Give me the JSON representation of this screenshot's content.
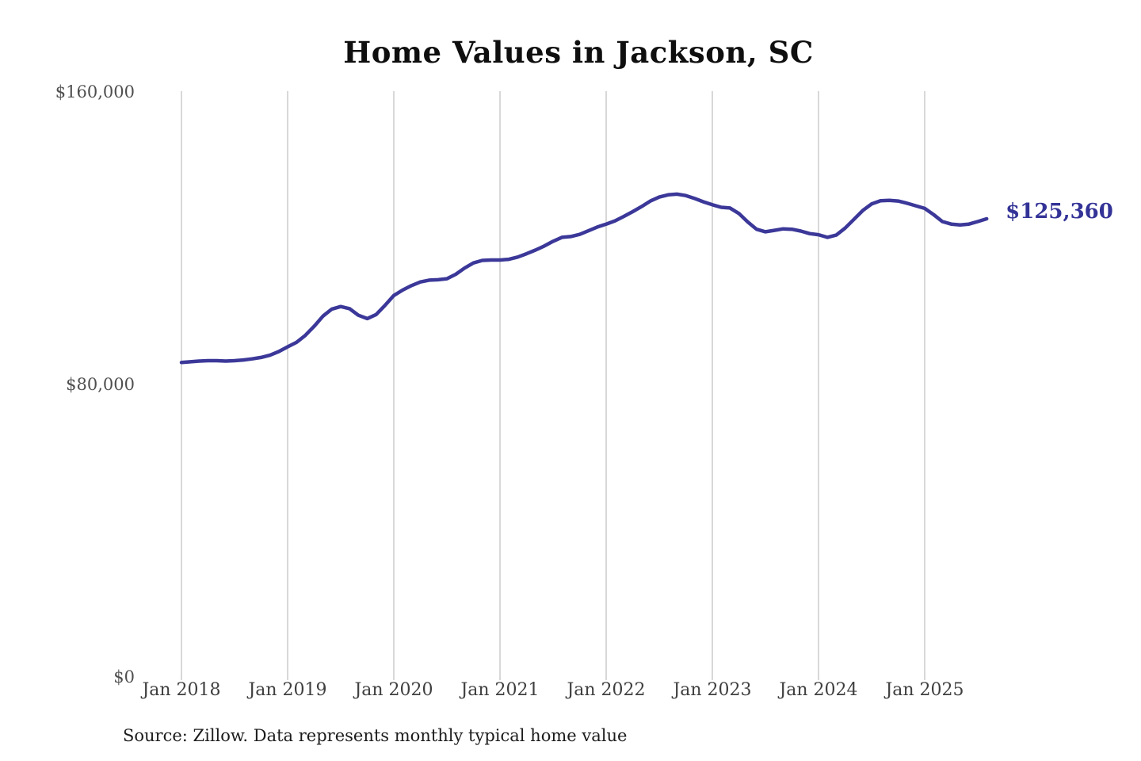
{
  "title": "Home Values in Jackson, SC",
  "source_note": "Source: Zillow. Data represents monthly typical home value",
  "colors": {
    "line": "#3b3899",
    "end_label": "#333397",
    "grid": "#cccccc",
    "y_tick_text": "#4f4f4f",
    "x_tick_text": "#3f3f3f",
    "title_text": "#0f0f0f",
    "source_text": "#1c1c1c",
    "background": "#ffffff"
  },
  "chart_data": {
    "type": "line",
    "title": "Home Values in Jackson, SC",
    "xlabel": "",
    "ylabel": "",
    "ylim": [
      0,
      160000
    ],
    "y_tick_labels": [
      "$0",
      "$80,000",
      "$160,000"
    ],
    "y_tick_values": [
      0,
      80000,
      160000
    ],
    "x_tick_labels": [
      "Jan 2018",
      "Jan 2019",
      "Jan 2020",
      "Jan 2021",
      "Jan 2022",
      "Jan 2023",
      "Jan 2024",
      "Jan 2025"
    ],
    "x_start_month": "Jan 2018",
    "x_end_month": "Aug 2025",
    "points_interval": "monthly",
    "grid": "vertical-only",
    "legend": "none",
    "end_label": "$125,360",
    "end_value": 125360,
    "series": [
      {
        "name": "Monthly typical home value",
        "values": [
          86100,
          86300,
          86500,
          86600,
          86600,
          86500,
          86600,
          86800,
          87100,
          87500,
          88100,
          89100,
          90400,
          91600,
          93500,
          96000,
          98800,
          100700,
          101400,
          100800,
          99000,
          98100,
          99200,
          101700,
          104400,
          105900,
          107100,
          108100,
          108600,
          108700,
          109000,
          110200,
          111900,
          113300,
          114000,
          114100,
          114100,
          114300,
          114900,
          115800,
          116800,
          117900,
          119200,
          120300,
          120500,
          121100,
          122100,
          123100,
          123900,
          124800,
          126000,
          127300,
          128700,
          130200,
          131300,
          131900,
          132100,
          131700,
          130900,
          130000,
          129200,
          128500,
          128300,
          126800,
          124500,
          122500,
          121800,
          122200,
          122600,
          122500,
          122000,
          121300,
          121000,
          120300,
          120900,
          122800,
          125200,
          127600,
          129400,
          130300,
          130400,
          130200,
          129600,
          128900,
          128200,
          126500,
          124600,
          123900,
          123700,
          123900,
          124600,
          125360
        ]
      }
    ]
  }
}
